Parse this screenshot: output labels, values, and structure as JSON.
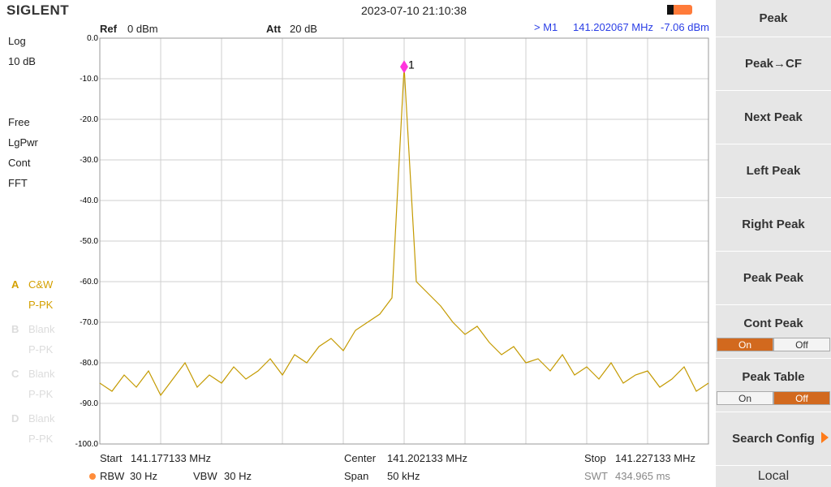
{
  "header": {
    "brand": "SIGLENT",
    "datetime": "2023-07-10 21:10:38"
  },
  "settings": {
    "ref_label": "Ref",
    "ref_value": "0 dBm",
    "att_label": "Att",
    "att_value": "20 dB",
    "marker_prefix": "> M1",
    "marker_freq": "141.202067 MHz",
    "marker_level": "-7.06 dBm"
  },
  "left_panel": {
    "scale": "Log",
    "div": "10 dB",
    "modes": [
      "Free",
      "LgPwr",
      "Cont",
      "FFT"
    ],
    "traces": [
      {
        "letter": "A",
        "name": "C&W",
        "detector": "P-PK",
        "active": true
      },
      {
        "letter": "B",
        "name": "Blank",
        "detector": "P-PK",
        "active": false
      },
      {
        "letter": "C",
        "name": "Blank",
        "detector": "P-PK",
        "active": false
      },
      {
        "letter": "D",
        "name": "Blank",
        "detector": "P-PK",
        "active": false
      }
    ]
  },
  "chart_data": {
    "type": "line",
    "color": "#c49a00",
    "grid": true,
    "marker_label": "1",
    "marker_index": 25,
    "xlim": [
      141.177133,
      141.227133
    ],
    "ylim": [
      -100,
      0
    ],
    "yticks": [
      {
        "value": 0,
        "label": "0.0"
      },
      {
        "value": -10,
        "label": "-10.0"
      },
      {
        "value": -20,
        "label": "-20.0"
      },
      {
        "value": -30,
        "label": "-30.0"
      },
      {
        "value": -40,
        "label": "-40.0"
      },
      {
        "value": -50,
        "label": "-50.0"
      },
      {
        "value": -60,
        "label": "-60.0"
      },
      {
        "value": -70,
        "label": "-70.0"
      },
      {
        "value": -80,
        "label": "-80.0"
      },
      {
        "value": -90,
        "label": "-90.0"
      },
      {
        "value": -100,
        "label": "-100.0"
      }
    ],
    "xticks": [
      141.177133,
      141.182133,
      141.187133,
      141.192133,
      141.197133,
      141.202133,
      141.207133,
      141.212133,
      141.217133,
      141.222133,
      141.227133
    ],
    "x": [
      141.177133,
      141.178133,
      141.179133,
      141.180133,
      141.181133,
      141.182133,
      141.183133,
      141.184133,
      141.185133,
      141.186133,
      141.187133,
      141.188133,
      141.189133,
      141.190133,
      141.191133,
      141.192133,
      141.193133,
      141.194133,
      141.195133,
      141.196133,
      141.197133,
      141.198133,
      141.199133,
      141.200133,
      141.201133,
      141.202133,
      141.203133,
      141.204133,
      141.205133,
      141.206133,
      141.207133,
      141.208133,
      141.209133,
      141.210133,
      141.211133,
      141.212133,
      141.213133,
      141.214133,
      141.215133,
      141.216133,
      141.217133,
      141.218133,
      141.219133,
      141.220133,
      141.221133,
      141.222133,
      141.223133,
      141.224133,
      141.225133,
      141.226133,
      141.227133
    ],
    "values": [
      -85,
      -87,
      -83,
      -86,
      -82,
      -88,
      -84,
      -80,
      -86,
      -83,
      -85,
      -81,
      -84,
      -82,
      -79,
      -83,
      -78,
      -80,
      -76,
      -74,
      -77,
      -72,
      -70,
      -68,
      -64,
      -7.06,
      -60,
      -63,
      -66,
      -70,
      -73,
      -71,
      -75,
      -78,
      -76,
      -80,
      -79,
      -82,
      -78,
      -83,
      -81,
      -84,
      -80,
      -85,
      -83,
      -82,
      -86,
      -84,
      -81,
      -87,
      -85
    ]
  },
  "footer": {
    "start_label": "Start",
    "start": "141.177133 MHz",
    "center_label": "Center",
    "center": "141.202133 MHz",
    "stop_label": "Stop",
    "stop": "141.227133 MHz",
    "rbw_label": "RBW",
    "rbw": "30 Hz",
    "vbw_label": "VBW",
    "vbw": "30 Hz",
    "span_label": "Span",
    "span": "50 kHz",
    "swt_label": "SWT",
    "swt": "434.965 ms"
  },
  "menu": {
    "items": [
      {
        "label": "Peak"
      },
      {
        "label": "Peak→CF"
      },
      {
        "label": "Next Peak"
      },
      {
        "label": "Left Peak"
      },
      {
        "label": "Right Peak"
      },
      {
        "label": "Peak Peak"
      },
      {
        "label": "Cont Peak",
        "options": [
          "On",
          "Off"
        ],
        "selected": 0
      },
      {
        "label": "Peak Table",
        "options": [
          "On",
          "Off"
        ],
        "selected": 1
      },
      {
        "label": "Search Config"
      }
    ],
    "footer": "Local"
  }
}
